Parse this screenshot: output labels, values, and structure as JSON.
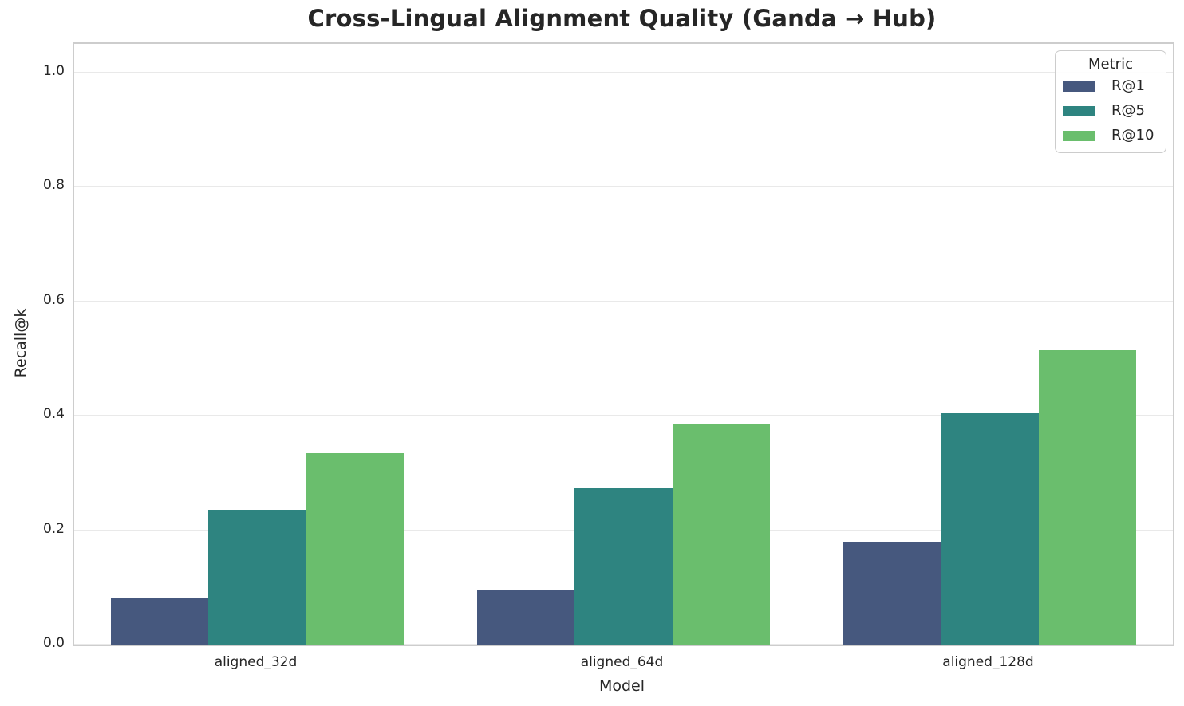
{
  "chart_data": {
    "type": "bar",
    "title": "Cross-Lingual Alignment Quality (Ganda → Hub)",
    "xlabel": "Model",
    "ylabel": "Recall@k",
    "categories": [
      "aligned_32d",
      "aligned_64d",
      "aligned_128d"
    ],
    "series": [
      {
        "name": "R@1",
        "color": "#46587e",
        "values": [
          0.082,
          0.095,
          0.179
        ]
      },
      {
        "name": "R@5",
        "color": "#2e8480",
        "values": [
          0.236,
          0.274,
          0.404
        ]
      },
      {
        "name": "R@10",
        "color": "#6abe6d",
        "values": [
          0.335,
          0.386,
          0.514
        ]
      }
    ],
    "ylim": [
      0,
      1.05
    ],
    "yticks": [
      0.0,
      0.2,
      0.4,
      0.6,
      0.8,
      1.0
    ],
    "ytick_labels": [
      "0.0",
      "0.2",
      "0.4",
      "0.6",
      "0.8",
      "1.0"
    ],
    "grid": true,
    "legend": {
      "title": "Metric",
      "position": "upper right"
    },
    "colors": {
      "text": "#262626",
      "grid": "#e9e9e9",
      "spine": "#cdcdcd",
      "background": "#ffffff"
    }
  }
}
